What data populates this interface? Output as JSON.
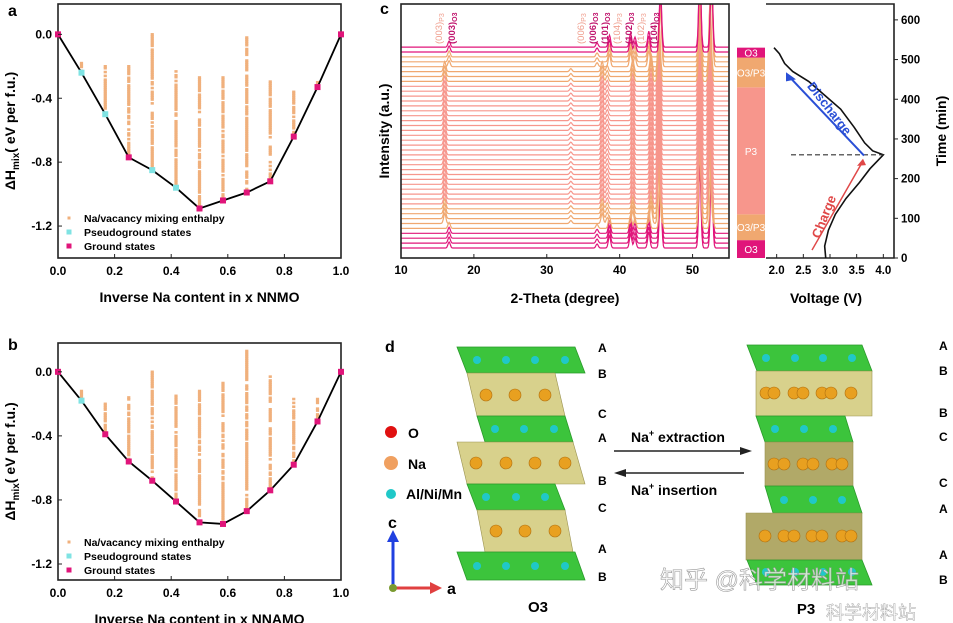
{
  "chart_data": [
    {
      "panel": "a",
      "type": "scatter",
      "xlabel": "Inverse Na content in x NNMO",
      "ylabel": "ΔH",
      "ylabel_sub": "mix",
      "ylabel_unit": "( eV per f.u.)",
      "xlim": [
        0,
        1.0
      ],
      "ylim": [
        -1.4,
        0.19
      ],
      "xticks": [
        "0.0",
        "0.2",
        "0.4",
        "0.6",
        "0.8",
        "1.0"
      ],
      "yticks": [
        "0.0",
        "-0.4",
        "-0.8",
        "-1.2"
      ],
      "legend": [
        "Na/vacancy mixing enthalpy",
        "Pseudoground states",
        "Ground states"
      ],
      "legend_position": "bottom-left",
      "colors": {
        "mixing": "#f0b07c",
        "pseudo": "#7fe3e3",
        "ground": "#e0157a",
        "hull": "#000000"
      },
      "mixing_ranges": [
        {
          "x": 0.083,
          "ymax": -0.18,
          "ymin": -0.24
        },
        {
          "x": 0.167,
          "ymax": -0.2,
          "ymin": -0.5
        },
        {
          "x": 0.25,
          "ymax": -0.2,
          "ymin": -0.77
        },
        {
          "x": 0.333,
          "ymax": 0.0,
          "ymin": -0.85
        },
        {
          "x": 0.417,
          "ymax": -0.22,
          "ymin": -0.96
        },
        {
          "x": 0.5,
          "ymax": -0.27,
          "ymin": -1.09
        },
        {
          "x": 0.583,
          "ymax": -0.27,
          "ymin": -1.04
        },
        {
          "x": 0.667,
          "ymax": -0.02,
          "ymin": -0.99
        },
        {
          "x": 0.75,
          "ymax": -0.26,
          "ymin": -0.92
        },
        {
          "x": 0.833,
          "ymax": -0.36,
          "ymin": -0.64
        },
        {
          "x": 0.917,
          "ymax": -0.3,
          "ymin": -0.33
        }
      ],
      "pseudoground": [
        [
          0.083,
          -0.24
        ],
        [
          0.167,
          -0.5
        ],
        [
          0.333,
          -0.85
        ],
        [
          0.417,
          -0.96
        ]
      ],
      "ground": [
        [
          0,
          0
        ],
        [
          0.25,
          -0.77
        ],
        [
          0.5,
          -1.09
        ],
        [
          0.583,
          -1.04
        ],
        [
          0.667,
          -0.99
        ],
        [
          0.75,
          -0.92
        ],
        [
          0.833,
          -0.64
        ],
        [
          0.917,
          -0.33
        ],
        [
          1.0,
          0
        ]
      ],
      "hull": [
        [
          0,
          0
        ],
        [
          0.083,
          -0.24
        ],
        [
          0.167,
          -0.5
        ],
        [
          0.25,
          -0.77
        ],
        [
          0.333,
          -0.85
        ],
        [
          0.417,
          -0.96
        ],
        [
          0.5,
          -1.09
        ],
        [
          0.583,
          -1.04
        ],
        [
          0.667,
          -0.99
        ],
        [
          0.75,
          -0.92
        ],
        [
          0.833,
          -0.64
        ],
        [
          0.917,
          -0.33
        ],
        [
          1.0,
          0
        ]
      ]
    },
    {
      "panel": "b",
      "type": "scatter",
      "xlabel": "Inverse Na content in x NNAMO",
      "ylabel": "ΔH",
      "ylabel_sub": "mix",
      "ylabel_unit": "( eV per f.u.)",
      "xlim": [
        0,
        1.0
      ],
      "ylim": [
        -1.3,
        0.18
      ],
      "xticks": [
        "0.0",
        "0.2",
        "0.4",
        "0.6",
        "0.8",
        "1.0"
      ],
      "yticks": [
        "0.0",
        "-0.4",
        "-0.8",
        "-1.2"
      ],
      "legend": [
        "Na/vacancy mixing enthalpy",
        "Pseudoground states",
        "Ground states"
      ],
      "legend_position": "bottom-left",
      "colors": {
        "mixing": "#f0b07c",
        "pseudo": "#7fe3e3",
        "ground": "#e0157a",
        "hull": "#000000"
      },
      "mixing_ranges": [
        {
          "x": 0.083,
          "ymax": -0.12,
          "ymin": -0.18
        },
        {
          "x": 0.167,
          "ymax": -0.2,
          "ymin": -0.39
        },
        {
          "x": 0.25,
          "ymax": -0.16,
          "ymin": -0.56
        },
        {
          "x": 0.333,
          "ymax": 0.0,
          "ymin": -0.68
        },
        {
          "x": 0.417,
          "ymax": -0.15,
          "ymin": -0.81
        },
        {
          "x": 0.5,
          "ymax": -0.12,
          "ymin": -0.94
        },
        {
          "x": 0.583,
          "ymax": -0.07,
          "ymin": -0.95
        },
        {
          "x": 0.667,
          "ymax": 0.13,
          "ymin": -0.87
        },
        {
          "x": 0.75,
          "ymax": -0.03,
          "ymin": -0.74
        },
        {
          "x": 0.833,
          "ymax": -0.17,
          "ymin": -0.58
        },
        {
          "x": 0.917,
          "ymax": -0.17,
          "ymin": -0.31
        }
      ],
      "pseudoground": [
        [
          0.083,
          -0.18
        ]
      ],
      "ground": [
        [
          0,
          0
        ],
        [
          0.167,
          -0.39
        ],
        [
          0.25,
          -0.56
        ],
        [
          0.333,
          -0.68
        ],
        [
          0.417,
          -0.81
        ],
        [
          0.5,
          -0.94
        ],
        [
          0.583,
          -0.95
        ],
        [
          0.667,
          -0.87
        ],
        [
          0.75,
          -0.74
        ],
        [
          0.833,
          -0.58
        ],
        [
          0.917,
          -0.31
        ],
        [
          1.0,
          0
        ]
      ],
      "hull": [
        [
          0,
          0
        ],
        [
          0.083,
          -0.18
        ],
        [
          0.167,
          -0.39
        ],
        [
          0.25,
          -0.56
        ],
        [
          0.333,
          -0.68
        ],
        [
          0.417,
          -0.81
        ],
        [
          0.5,
          -0.94
        ],
        [
          0.583,
          -0.95
        ],
        [
          0.667,
          -0.87
        ],
        [
          0.75,
          -0.74
        ],
        [
          0.833,
          -0.58
        ],
        [
          0.917,
          -0.31
        ],
        [
          1.0,
          0
        ]
      ]
    },
    {
      "panel": "c",
      "type": "line",
      "subtype": "stacked XRD patterns",
      "xlabel": "2-Theta (degree)",
      "ylabel": "Intensity (a.u.)",
      "xlim": [
        10,
        55
      ],
      "xticks": [
        "10",
        "20",
        "30",
        "40",
        "50"
      ],
      "trace_count": 42,
      "peaks_2theta": [
        16.4,
        17.0,
        33.5,
        36.2,
        37.3,
        38.6,
        41.5,
        42.1,
        44.0,
        45.6,
        48.4,
        51.0,
        52.6
      ],
      "peak_labels": [
        {
          "text": "(003)",
          "sub": "P3",
          "color": "#f0a090"
        },
        {
          "text": "(003)",
          "sub": "O3",
          "color": "#c0166e"
        },
        {
          "text": "(006)",
          "sub": "P3",
          "color": "#f0a090"
        },
        {
          "text": "(006)",
          "sub": "O3",
          "color": "#c0166e"
        },
        {
          "text": "(101)",
          "sub": "O3",
          "color": "#c0166e"
        },
        {
          "text": "(104)",
          "sub": "P3",
          "color": "#f0a090"
        },
        {
          "text": "(102)",
          "sub": "O3",
          "color": "#c0166e"
        },
        {
          "text": "(102)",
          "sub": "P3",
          "color": "#f0a090"
        },
        {
          "text": "(104)",
          "sub": "O3",
          "color": "#c0166e"
        }
      ],
      "colors": {
        "O3": "#e0157a",
        "O3/P3": "#f0a860",
        "P3": "#f4948c"
      }
    },
    {
      "panel": "c-right",
      "type": "line",
      "xlabel": "Voltage (V)",
      "ylabel": "Time (min)",
      "xlim": [
        1.8,
        4.2
      ],
      "ylim": [
        0,
        640
      ],
      "xticks": [
        "2.0",
        "2.5",
        "3.0",
        "3.5",
        "4.0"
      ],
      "yticks": [
        "0",
        "100",
        "200",
        "300",
        "400",
        "500",
        "600"
      ],
      "voltage_curve": [
        [
          2.92,
          0
        ],
        [
          2.9,
          30
        ],
        [
          2.97,
          70
        ],
        [
          3.1,
          110
        ],
        [
          3.3,
          150
        ],
        [
          3.55,
          190
        ],
        [
          3.75,
          225
        ],
        [
          4.0,
          260
        ],
        [
          3.8,
          270
        ],
        [
          3.65,
          290
        ],
        [
          3.45,
          330
        ],
        [
          3.2,
          375
        ],
        [
          2.9,
          410
        ],
        [
          2.6,
          445
        ],
        [
          2.3,
          470
        ],
        [
          2.15,
          490
        ],
        [
          2.05,
          515
        ],
        [
          1.95,
          530
        ]
      ],
      "switch_time": 260,
      "phases": [
        {
          "label": "O3",
          "from": 0,
          "to": 45,
          "color": "#e0157a"
        },
        {
          "label": "O3/P3",
          "from": 45,
          "to": 110,
          "color": "#f0a870"
        },
        {
          "label": "P3",
          "from": 110,
          "to": 430,
          "color": "#f7968c"
        },
        {
          "label": "O3/P3",
          "from": 430,
          "to": 505,
          "color": "#f0a870"
        },
        {
          "label": "O3",
          "from": 505,
          "to": 530,
          "color": "#e0157a"
        }
      ],
      "annotations": {
        "charge": "Charge",
        "discharge": "Discharge"
      },
      "annotation_colors": {
        "charge": "#e04848",
        "discharge": "#2a4fd6"
      }
    }
  ],
  "panel_labels": {
    "a": "a",
    "b": "b",
    "c": "c",
    "d": "d"
  },
  "diagram": {
    "legend": [
      {
        "label": "O",
        "color": "#e01010"
      },
      {
        "label": "Na",
        "color": "#f0a060"
      },
      {
        "label": "Al/Ni/Mn",
        "color": "#20c8c8"
      }
    ],
    "axes": {
      "c": "c",
      "a": "a"
    },
    "o3_title": "O3",
    "p3_title": "P3",
    "o3_stacking": [
      "A",
      "B",
      "C",
      "A",
      "B",
      "C",
      "A",
      "B"
    ],
    "p3_stacking": [
      "A",
      "B",
      "B",
      "C",
      "C",
      "A",
      "A",
      "B"
    ],
    "extraction_label": "Na",
    "extraction_sup": "+",
    "extraction_text": " extraction",
    "insertion_label": "Na",
    "insertion_sup": "+",
    "insertion_text": " insertion"
  },
  "watermark": {
    "line1": "知乎 @科学材料站",
    "line2": "科学材料站"
  }
}
